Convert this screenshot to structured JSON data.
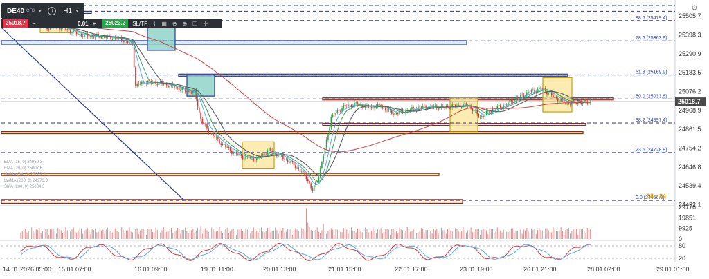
{
  "toolbar": {
    "symbol": "DE40",
    "symbol_type": "CFD",
    "timeframe": "H1",
    "sell_price": "25018.7",
    "quantity": "0.01",
    "buy_price": "25023.2",
    "sl_tp_label": "SL/TP"
  },
  "icons": [
    "chevron-down-icon",
    "info-icon",
    "minus-icon",
    "plus-icon",
    "line-chart-icon",
    "grid-icon",
    "zoom-out-icon",
    "zoom-in-icon",
    "layers-icon",
    "crosshair-icon",
    "gear-icon"
  ],
  "colors": {
    "up_candle": "#2da14c",
    "down_candle": "#d63a3a",
    "ema_blue": "#5aa9e6",
    "ema_green": "#3a9a5b",
    "ema_gray": "#5f6368",
    "ema_red": "#cc4444",
    "fib_line": "#2b3a8c",
    "zone_yellow": "#fde9a3",
    "zone_teal": "#8fd3c8",
    "price_tag": "#4a4a4a"
  },
  "chart_data": {
    "type": "candlestick",
    "instrument": "DE40",
    "timeframe": "H1",
    "price_axis_ticks": [
      25505.7,
      25398.3,
      25290.9,
      25183.5,
      25076.2,
      24968.9,
      24861.5,
      24754.2,
      24646.8,
      24539.4,
      24432.1
    ],
    "current_price": 25018.7,
    "ylim": [
      24430,
      25565
    ],
    "x_tick_labels": [
      "14.01.2026 05:00",
      "15.01 07:00",
      "16.01 09:00",
      "19.01 11:00",
      "20.01 13:00",
      "21.01 15:00",
      "22.01 17:00",
      "23.01 19:00",
      "26.01 21:00",
      "28.01 02:00",
      "29.01 01:00"
    ],
    "fib_levels": [
      {
        "label": "88.6 (25479.4)",
        "value": 25479.4
      },
      {
        "label": "78.6 (25363.9)",
        "value": 25363.9
      },
      {
        "label": "61.8 (25169.9)",
        "value": 25169.9
      },
      {
        "label": "50.0 (25033.6)",
        "value": 25033.6
      },
      {
        "label": "38.2 (24897.4)",
        "value": 24897.4
      },
      {
        "label": "23.6 (24728.8)",
        "value": 24728.8
      },
      {
        "label": "0.0 (24456.9)",
        "value": 24456.9
      }
    ],
    "extra_dashed_levels": [
      25565,
      25532
    ],
    "annotation_text": "38 - 84",
    "indicator_legend": [
      "EMA (15, 0) 24959.3",
      "EMA (20, 0) 25007.6",
      "LWMA (34, 0) 25009.2",
      "LWMA (200, 0) 24979.0",
      "SMA (200, 0) 25084.3"
    ],
    "ohlc_close_path": [
      [
        0,
        25510
      ],
      [
        8,
        25470
      ],
      [
        16,
        25440
      ],
      [
        24,
        25445
      ],
      [
        32,
        25420
      ],
      [
        40,
        25395
      ],
      [
        48,
        25390
      ],
      [
        56,
        25385
      ],
      [
        64,
        25375
      ],
      [
        72,
        25345
      ],
      [
        74,
        25110
      ],
      [
        80,
        25130
      ],
      [
        88,
        25125
      ],
      [
        96,
        25110
      ],
      [
        104,
        25085
      ],
      [
        112,
        25070
      ],
      [
        116,
        24920
      ],
      [
        120,
        24860
      ],
      [
        128,
        24790
      ],
      [
        136,
        24735
      ],
      [
        144,
        24700
      ],
      [
        152,
        24695
      ],
      [
        160,
        24740
      ],
      [
        168,
        24705
      ],
      [
        176,
        24660
      ],
      [
        184,
        24590
      ],
      [
        188,
        24510
      ],
      [
        192,
        24600
      ],
      [
        196,
        24750
      ],
      [
        200,
        24930
      ],
      [
        208,
        24990
      ],
      [
        216,
        25005
      ],
      [
        224,
        24985
      ],
      [
        232,
        24995
      ],
      [
        240,
        24950
      ],
      [
        248,
        24965
      ],
      [
        256,
        24985
      ],
      [
        264,
        24990
      ],
      [
        272,
        24985
      ],
      [
        280,
        24995
      ],
      [
        288,
        25000
      ],
      [
        296,
        24930
      ],
      [
        304,
        24975
      ],
      [
        312,
        25000
      ],
      [
        320,
        25040
      ],
      [
        328,
        25075
      ],
      [
        336,
        25095
      ],
      [
        344,
        25040
      ],
      [
        352,
        25010
      ],
      [
        360,
        25015
      ],
      [
        368,
        25018.7
      ]
    ],
    "volume_axis_ticks": [
      29776,
      19851,
      9925,
      0
    ],
    "oscillator_axis_ticks": [
      80,
      20
    ]
  }
}
